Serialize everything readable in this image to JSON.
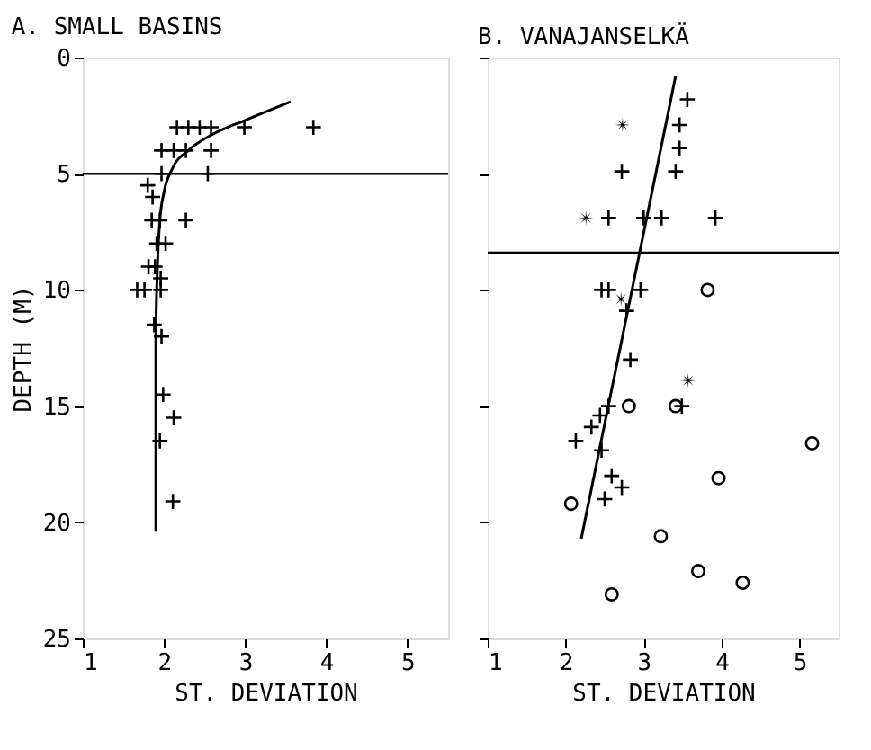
{
  "chart_data": [
    {
      "type": "scatter",
      "title": "A. SMALL BASINS",
      "xlabel": "ST. DEVIATION",
      "ylabel": "DEPTH (M)",
      "xlim": [
        1,
        5.5
      ],
      "ylim": [
        25,
        0
      ],
      "xticks": [
        1,
        2,
        3,
        4,
        5
      ],
      "yticks": [
        0,
        5,
        10,
        15,
        20,
        25
      ],
      "grid": false,
      "series": [
        {
          "type": "scatter",
          "marker": "cross",
          "color": "#000000",
          "x": [
            2.16,
            2.3,
            2.44,
            2.58,
            2.99,
            3.84,
            1.97,
            2.12,
            2.27,
            2.58,
            1.97,
            2.54,
            1.8,
            1.86,
            1.85,
            1.95,
            2.27,
            1.91,
            2.02,
            1.81,
            1.89,
            1.96,
            1.67,
            1.76,
            1.96,
            1.88,
            1.97,
            1.99,
            2.12,
            1.95,
            2.11
          ],
          "values": [
            3,
            3,
            3,
            3,
            3,
            3,
            4,
            4,
            4,
            4,
            5,
            5,
            5.5,
            6,
            7,
            7,
            7,
            8,
            8,
            9,
            9,
            9.5,
            10,
            10,
            10,
            11.5,
            12,
            14.5,
            15.5,
            16.5,
            19.1
          ]
        },
        {
          "type": "line",
          "marker": "none",
          "color": "#000000",
          "x": [
            3.56,
            3.0,
            2.6,
            2.3,
            2.1,
            2.0,
            1.95,
            1.92,
            1.9,
            1.9
          ],
          "values": [
            1.9,
            2.7,
            3.3,
            4.0,
            4.8,
            5.8,
            7,
            9,
            12,
            20.4
          ]
        }
      ],
      "ref_lines": [
        {
          "axis": "y",
          "value": 5,
          "color": "#000000"
        }
      ]
    },
    {
      "type": "scatter",
      "title": "B. VANAJANSELKÄ",
      "xlabel": "ST. DEVIATION",
      "xlim": [
        1,
        5.5
      ],
      "ylim": [
        25,
        0
      ],
      "xticks": [
        1,
        2,
        3,
        4,
        5
      ],
      "yticks": [
        0,
        5,
        10,
        15,
        20,
        25
      ],
      "grid": false,
      "tick_labels": "x",
      "series": [
        {
          "type": "scatter",
          "marker": "cross",
          "color": "#000000",
          "x": [
            3.56,
            3.46,
            3.46,
            2.72,
            3.41,
            2.55,
            3.0,
            3.23,
            3.92,
            2.46,
            2.55,
            2.96,
            2.78,
            2.83,
            2.55,
            3.49,
            2.44,
            2.33,
            2.13,
            2.46,
            2.59,
            2.72,
            2.5
          ],
          "values": [
            1.8,
            2.9,
            3.9,
            4.9,
            4.9,
            6.9,
            6.9,
            6.9,
            6.9,
            10,
            10,
            10,
            10.9,
            13,
            15,
            15,
            15.4,
            15.9,
            16.5,
            16.9,
            18,
            18.5,
            19
          ]
        },
        {
          "type": "scatter",
          "marker": "star",
          "color": "#000000",
          "x": [
            2.73,
            2.26,
            2.71,
            3.57
          ],
          "values": [
            2.9,
            6.9,
            10.4,
            13.9
          ]
        },
        {
          "type": "scatter",
          "marker": "circle",
          "color": "#000000",
          "x": [
            3.82,
            2.81,
            3.41,
            5.16,
            3.96,
            2.07,
            3.22,
            3.7,
            4.27,
            2.59
          ],
          "values": [
            10,
            15,
            15,
            16.6,
            18.1,
            19.2,
            20.6,
            22.1,
            22.6,
            23.1
          ]
        },
        {
          "type": "line",
          "marker": "none",
          "color": "#000000",
          "x": [
            3.41,
            2.2
          ],
          "values": [
            0.8,
            20.7
          ]
        }
      ],
      "ref_lines": [
        {
          "axis": "y",
          "value": 8.4,
          "color": "#000000"
        }
      ]
    }
  ]
}
